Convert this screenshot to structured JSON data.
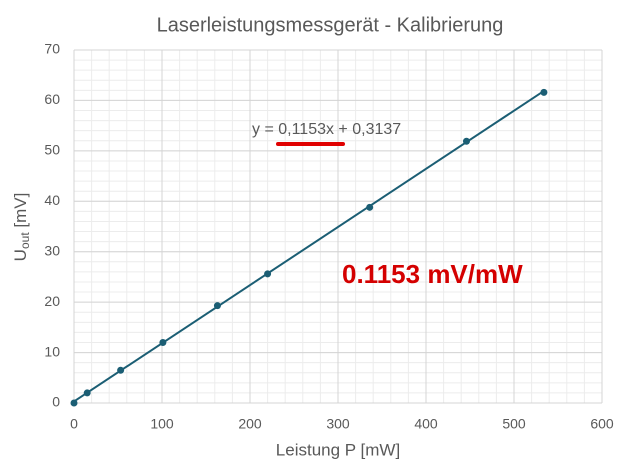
{
  "chart_data": {
    "type": "scatter",
    "title": "Laserleistungsmessgerät - Kalibrierung",
    "xlabel": "Leistung P [mW]",
    "ylabel": {
      "main": "U",
      "sub": "out",
      "rest": " [mV]"
    },
    "series": [
      {
        "color": "#1b5e74",
        "x": [
          0,
          15,
          53,
          101,
          163,
          220,
          336,
          446,
          534
        ],
        "values": [
          0,
          2.0,
          6.5,
          12.0,
          19.3,
          25.6,
          38.8,
          51.9,
          61.6
        ]
      }
    ],
    "trendline": {
      "slope": 0.1153,
      "intercept": 0.3137,
      "label": "y = 0,1153x + 0,3137"
    },
    "annotation": "0.1153 mV/mW",
    "xlim": [
      0,
      600
    ],
    "xticks": [
      0,
      100,
      200,
      300,
      400,
      500,
      600
    ],
    "ylim": [
      0,
      70
    ],
    "yticks": [
      0,
      10,
      20,
      30,
      40,
      50,
      60,
      70
    ],
    "grid": true,
    "minor_grid": {
      "x": 20,
      "y": 2
    }
  }
}
